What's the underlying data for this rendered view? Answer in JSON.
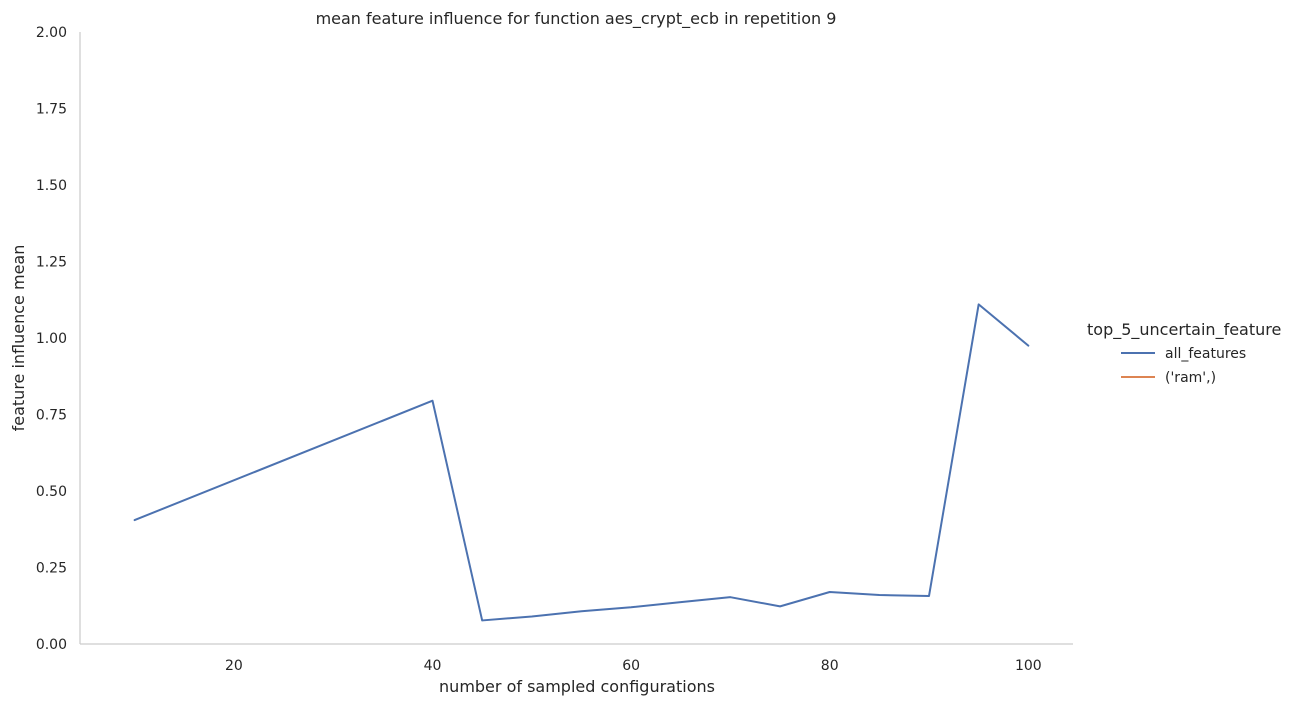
{
  "chart_data": {
    "type": "line",
    "title": "mean feature influence for function aes_crypt_ecb in repetition 9",
    "xlabel": "number of sampled configurations",
    "ylabel": "feature influence mean",
    "xlim": [
      4.5,
      104.5
    ],
    "ylim": [
      0,
      2.0
    ],
    "x_ticks": [
      20,
      40,
      60,
      80,
      100
    ],
    "x_tick_labels": [
      "20",
      "40",
      "60",
      "80",
      "100"
    ],
    "y_ticks": [
      0,
      0.25,
      0.5,
      0.75,
      1.0,
      1.25,
      1.5,
      1.75,
      2.0
    ],
    "y_tick_labels": [
      "0.00",
      "0.25",
      "0.50",
      "0.75",
      "1.00",
      "1.25",
      "1.50",
      "1.75",
      "2.00"
    ],
    "grid": false,
    "legend": {
      "title": "top_5_uncertain_feature",
      "placement": "right"
    },
    "series": [
      {
        "name": "all_features",
        "color": "#4c72b0",
        "x": [
          10,
          40,
          45,
          50,
          55,
          60,
          65,
          70,
          75,
          80,
          85,
          90,
          95,
          100
        ],
        "y": [
          0.405,
          0.795,
          0.077,
          0.09,
          0.107,
          0.12,
          0.137,
          0.153,
          0.123,
          0.17,
          0.16,
          0.157,
          1.11,
          0.975
        ]
      },
      {
        "name": "('ram',)",
        "color": "#dd8452",
        "x": [],
        "y": []
      }
    ]
  }
}
